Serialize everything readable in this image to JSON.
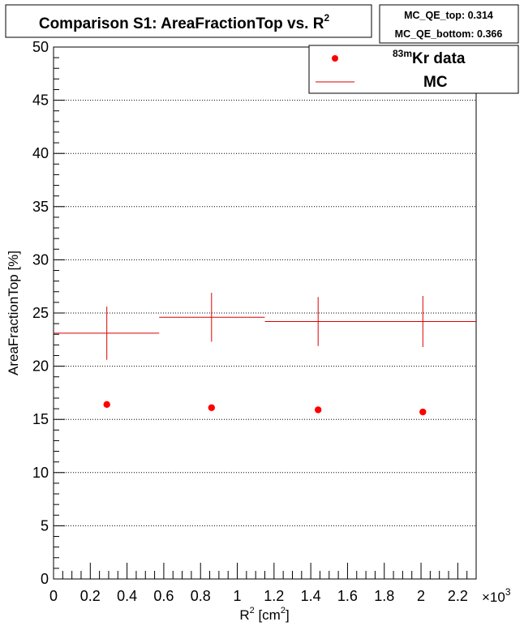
{
  "chart_data": {
    "type": "scatter",
    "title": "Comparison S1: AreaFractionTop vs. R",
    "title_superscript": "2",
    "xlabel": "R",
    "xlabel_sup1": "2",
    "xlabel_mid": " [cm",
    "xlabel_sup2": "2",
    "xlabel_end": "]",
    "ylabel": "AreaFractionTop [%]",
    "x_multiplier_prefix": "×10",
    "x_multiplier_exp": "3",
    "xlim": [
      0,
      2.3
    ],
    "ylim": [
      0,
      50
    ],
    "x_ticks": [
      0,
      0.2,
      0.4,
      0.6,
      0.8,
      1,
      1.2,
      1.4,
      1.6,
      1.8,
      2,
      2.2
    ],
    "x_tick_labels": [
      "0",
      "0.2",
      "0.4",
      "0.6",
      "0.8",
      "1",
      "1.2",
      "1.4",
      "1.6",
      "1.8",
      "2",
      "2.2"
    ],
    "y_ticks": [
      0,
      5,
      10,
      15,
      20,
      25,
      30,
      35,
      40,
      45,
      50
    ],
    "y_tick_labels": [
      "0",
      "5",
      "10",
      "15",
      "20",
      "25",
      "30",
      "35",
      "40",
      "45",
      "50"
    ],
    "grid": "horizontal-dotted",
    "legend_position": "top-right",
    "series": [
      {
        "name_prefix": "83m",
        "name": "Kr data",
        "style": "markers",
        "color": "#ff0000",
        "x": [
          0.29,
          0.86,
          1.44,
          2.01
        ],
        "y": [
          16.4,
          16.1,
          15.9,
          15.7
        ]
      },
      {
        "name": "MC",
        "style": "error-crosses",
        "color": "#dd0000",
        "x": [
          0.29,
          0.86,
          1.44,
          2.01
        ],
        "y": [
          23.1,
          24.6,
          24.2,
          24.2
        ],
        "x_low": [
          0,
          0.575,
          1.15,
          1.15
        ],
        "x_high": [
          0.575,
          1.15,
          2.3,
          2.3
        ],
        "y_err": [
          2.5,
          2.3,
          2.3,
          2.4
        ]
      }
    ]
  },
  "stats_box": {
    "line1": "MC_QE_top: 0.314",
    "line2": "MC_QE_bottom: 0.366"
  }
}
